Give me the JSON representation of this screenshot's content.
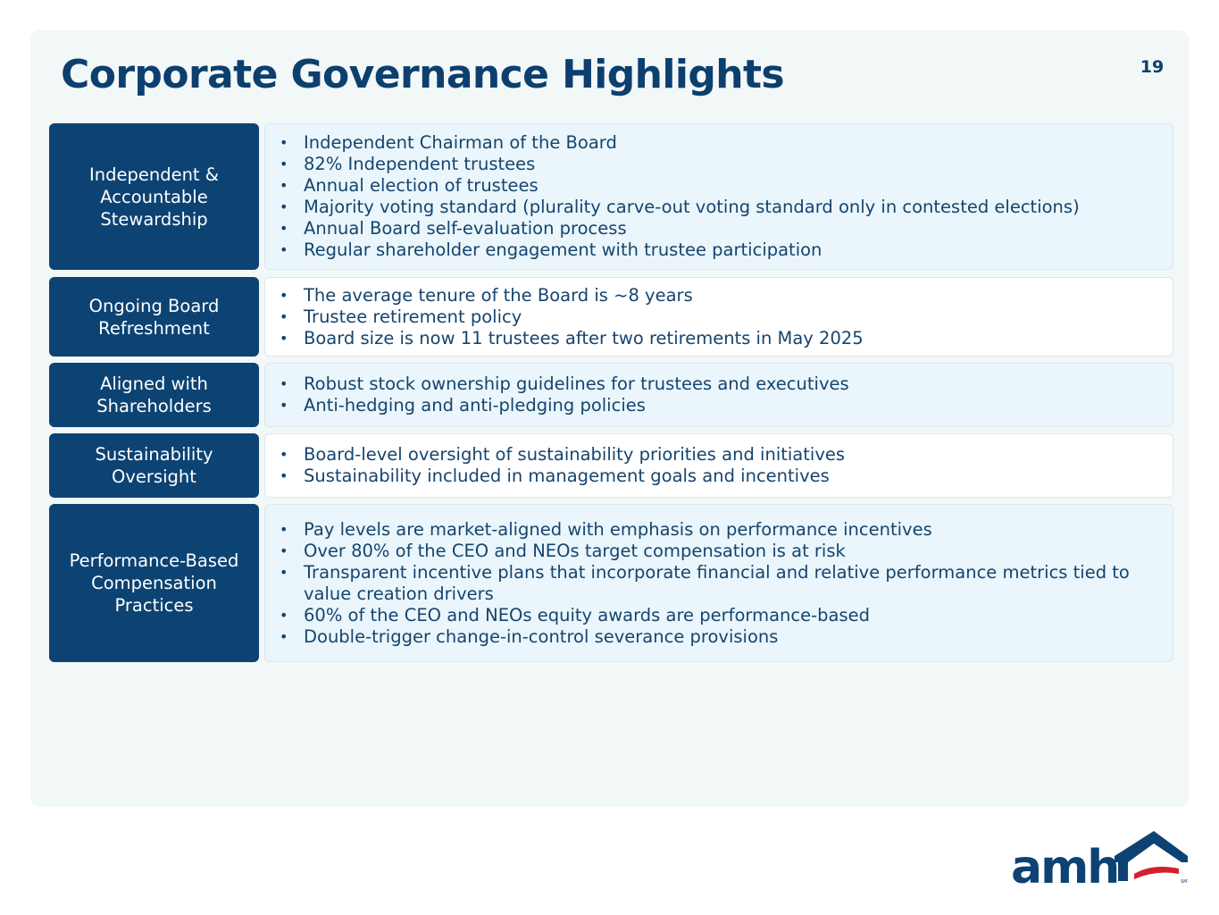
{
  "slide": {
    "title": "Corporate Governance Highlights",
    "page_number": "19"
  },
  "rows": [
    {
      "label": "Independent &\nAccountable\nStewardship",
      "items": [
        "Independent Chairman of the Board",
        "82% Independent trustees",
        "Annual election of trustees",
        "Majority voting standard (plurality carve-out voting standard only in contested elections)",
        "Annual Board self-evaluation process",
        "Regular shareholder engagement with trustee participation"
      ]
    },
    {
      "label": "Ongoing Board\nRefreshment",
      "items": [
        "The average tenure of the Board is ~8 years",
        "Trustee retirement policy",
        "Board size is now 11 trustees after two retirements in May 2025"
      ]
    },
    {
      "label": "Aligned with\nShareholders",
      "items": [
        "Robust stock ownership guidelines for trustees and executives",
        "Anti-hedging and anti-pledging policies"
      ]
    },
    {
      "label": "Sustainability\nOversight",
      "items": [
        "Board-level oversight of sustainability priorities and initiatives",
        "Sustainability included in management goals and incentives"
      ]
    },
    {
      "label": "Performance-Based\nCompensation\nPractices",
      "items": [
        "Pay levels are market-aligned with emphasis on performance incentives",
        "Over 80% of the CEO and NEOs target compensation is at risk",
        "Transparent incentive plans that incorporate financial and relative performance metrics tied to value creation drivers",
        "60% of the CEO and NEOs equity awards are performance-based",
        "Double-trigger change-in-control severance provisions"
      ]
    }
  ],
  "logo": {
    "text": "amh",
    "icon": "house-roof-icon",
    "mark": "SM",
    "colors": {
      "navy": "#0c4373",
      "red": "#d2202f"
    }
  }
}
